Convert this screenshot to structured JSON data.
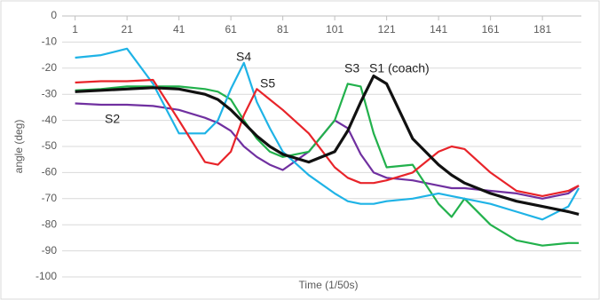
{
  "chart_data": {
    "type": "line",
    "x_label": "Time (1/50s)",
    "y_label": "angle (deg)",
    "x": [
      1,
      11,
      21,
      31,
      41,
      51,
      56,
      61,
      66,
      71,
      76,
      81,
      91,
      101,
      106,
      111,
      116,
      121,
      131,
      141,
      146,
      151,
      161,
      171,
      181,
      191,
      195
    ],
    "xlim": [
      -4,
      196
    ],
    "xticks": [
      1,
      21,
      41,
      61,
      81,
      101,
      121,
      141,
      161,
      181
    ],
    "ylim": [
      -100,
      0
    ],
    "yticks": [
      0,
      -10,
      -20,
      -30,
      -40,
      -50,
      -60,
      -70,
      -80,
      -90,
      -100
    ],
    "grid": true,
    "series": [
      {
        "name": "S1",
        "color": "#111111",
        "values": [
          -29,
          -28.5,
          -28,
          -27.5,
          -28,
          -30,
          -32,
          -36,
          -41,
          -46,
          -50,
          -53,
          -56,
          -52,
          -44,
          -33,
          -23,
          -26,
          -47,
          -57,
          -61,
          -64,
          -68,
          -71,
          -73,
          -75,
          -76
        ]
      },
      {
        "name": "S2",
        "color": "#7030a0",
        "values": [
          -33.5,
          -34,
          -34,
          -34.5,
          -36,
          -39,
          -41,
          -44,
          -50,
          -54,
          -57,
          -59,
          -52,
          -40,
          -43,
          -53,
          -60,
          -62,
          -63,
          -65,
          -66,
          -66,
          -67,
          -68,
          -70,
          -68,
          -65
        ]
      },
      {
        "name": "S3",
        "color": "#22b14c",
        "values": [
          -28.5,
          -28,
          -27,
          -27,
          -27,
          -28,
          -29,
          -32,
          -40,
          -47,
          -52,
          -54,
          -52,
          -40,
          -26,
          -27,
          -45,
          -58,
          -57,
          -72,
          -77,
          -70,
          -80,
          -86,
          -88,
          -87,
          -87
        ]
      },
      {
        "name": "S4",
        "color": "#1fb3e6",
        "values": [
          -16,
          -15,
          -12.5,
          -26,
          -45,
          -45,
          -40,
          -28,
          -18,
          -33,
          -43,
          -52,
          -61,
          -68,
          -71,
          -72,
          -72,
          -71,
          -70,
          -68,
          -69,
          -70,
          -72,
          -75,
          -78,
          -73,
          -66
        ]
      },
      {
        "name": "S5",
        "color": "#e8242a",
        "values": [
          -25.5,
          -25,
          -25,
          -24.5,
          -40,
          -56,
          -57,
          -52,
          -38,
          -28,
          -32,
          -36,
          -45,
          -58,
          -62,
          -64,
          -64,
          -63,
          -60,
          -52,
          -50,
          -51,
          -60,
          -67,
          -69,
          -67,
          -65
        ]
      }
    ],
    "annotations": [
      "S4",
      "S5",
      "S3",
      "S1 (coach)",
      "S2"
    ]
  }
}
